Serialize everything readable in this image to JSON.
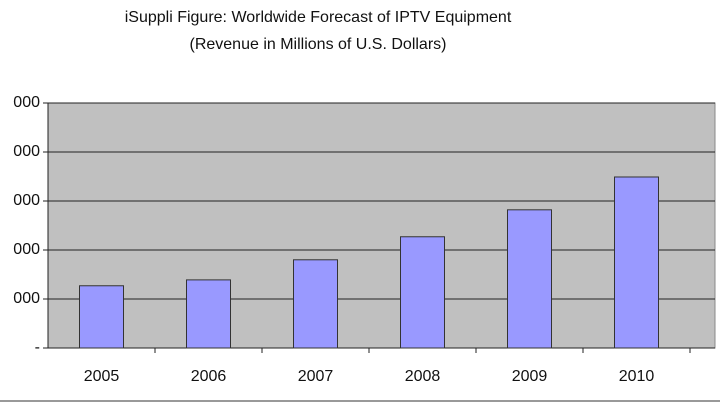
{
  "chart_data": {
    "type": "bar",
    "title": "iSuppli Figure: Worldwide Forecast of IPTV Equipment",
    "subtitle": "(Revenue in Millions of U.S. Dollars)",
    "categories": [
      "2005",
      "2006",
      "2007",
      "2008",
      "2009",
      "2010"
    ],
    "values": [
      1270,
      1390,
      1800,
      2270,
      2820,
      3490
    ],
    "color": "#9999ff",
    "ylim": [
      0,
      5000
    ],
    "yticks": [
      {
        "value": 0,
        "label": "-"
      },
      {
        "value": 1000,
        "label": "000"
      },
      {
        "value": 2000,
        "label": "000"
      },
      {
        "value": 3000,
        "label": "000"
      },
      {
        "value": 4000,
        "label": "000"
      },
      {
        "value": 5000,
        "label": "000"
      }
    ],
    "grid": true
  }
}
